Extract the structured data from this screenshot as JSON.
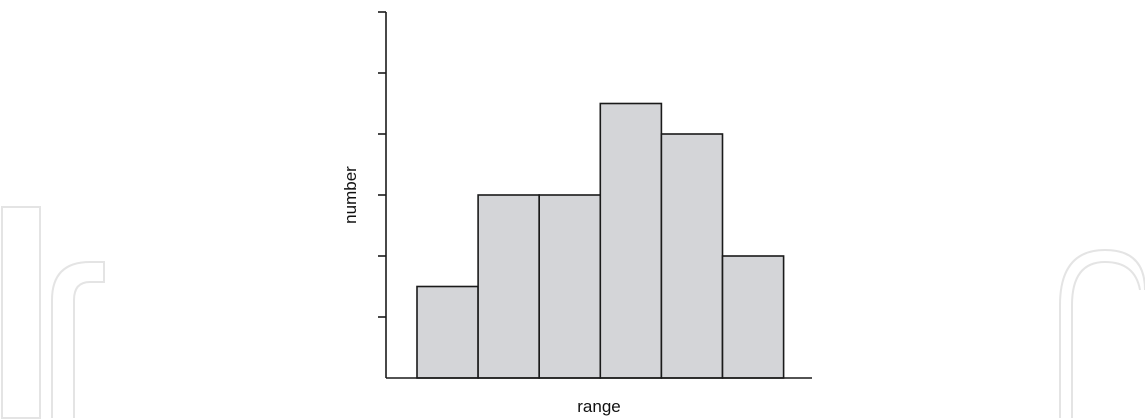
{
  "chart_data": {
    "type": "bar",
    "title": "",
    "xlabel": "range",
    "ylabel": "number",
    "categories": [
      "",
      "",
      "",
      "",
      "",
      ""
    ],
    "values": [
      1.5,
      3,
      3,
      4.5,
      4,
      2
    ],
    "ylim": [
      0,
      6
    ],
    "yticks": [
      1,
      2,
      3,
      4,
      5,
      6
    ],
    "tick_labels_visible": false,
    "grid": false,
    "bar_color": "#d4d5d8",
    "edge_color": "#1a1a1a"
  }
}
